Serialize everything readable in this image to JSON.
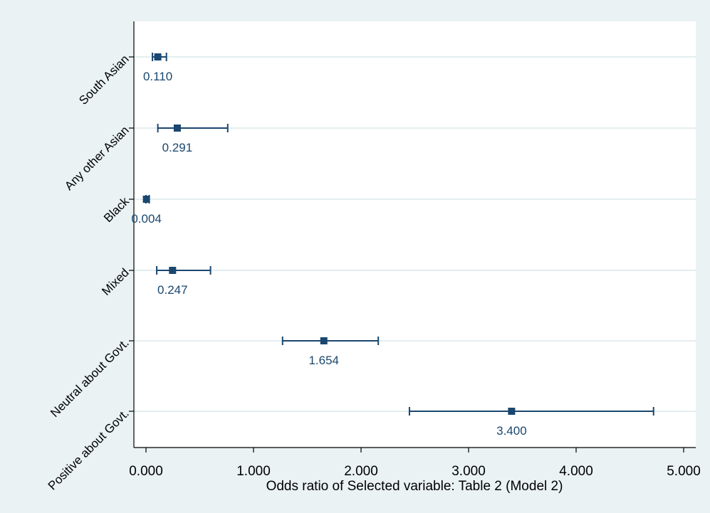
{
  "chart_data": {
    "type": "scatter",
    "title": "",
    "xlabel": "Odds ratio of Selected variable: Table 2 (Model 2)",
    "ylabel": "",
    "xlim": [
      0,
      5
    ],
    "xticks": [
      0,
      1,
      2,
      3,
      4,
      5
    ],
    "xtick_labels": [
      "0.000",
      "1.000",
      "2.000",
      "3.000",
      "4.000",
      "5.000"
    ],
    "grid": "horizontal",
    "categories": [
      "South Asian",
      "Any other Asian",
      "Black",
      "Mixed",
      "Neutral about Govt.",
      "Positive about Govt."
    ],
    "values": [
      0.11,
      0.291,
      0.004,
      0.247,
      1.654,
      3.4
    ],
    "value_labels": [
      "0.110",
      "0.291",
      "0.004",
      "0.247",
      "1.654",
      "3.400"
    ],
    "ci_low": [
      0.06,
      0.11,
      0.0,
      0.1,
      1.27,
      2.45
    ],
    "ci_high": [
      0.19,
      0.76,
      0.03,
      0.6,
      2.16,
      4.72
    ],
    "colors": {
      "marker": "#1a476f",
      "background": "#eaf2f3",
      "plot": "#ffffff",
      "grid": "#e4eef0"
    }
  }
}
